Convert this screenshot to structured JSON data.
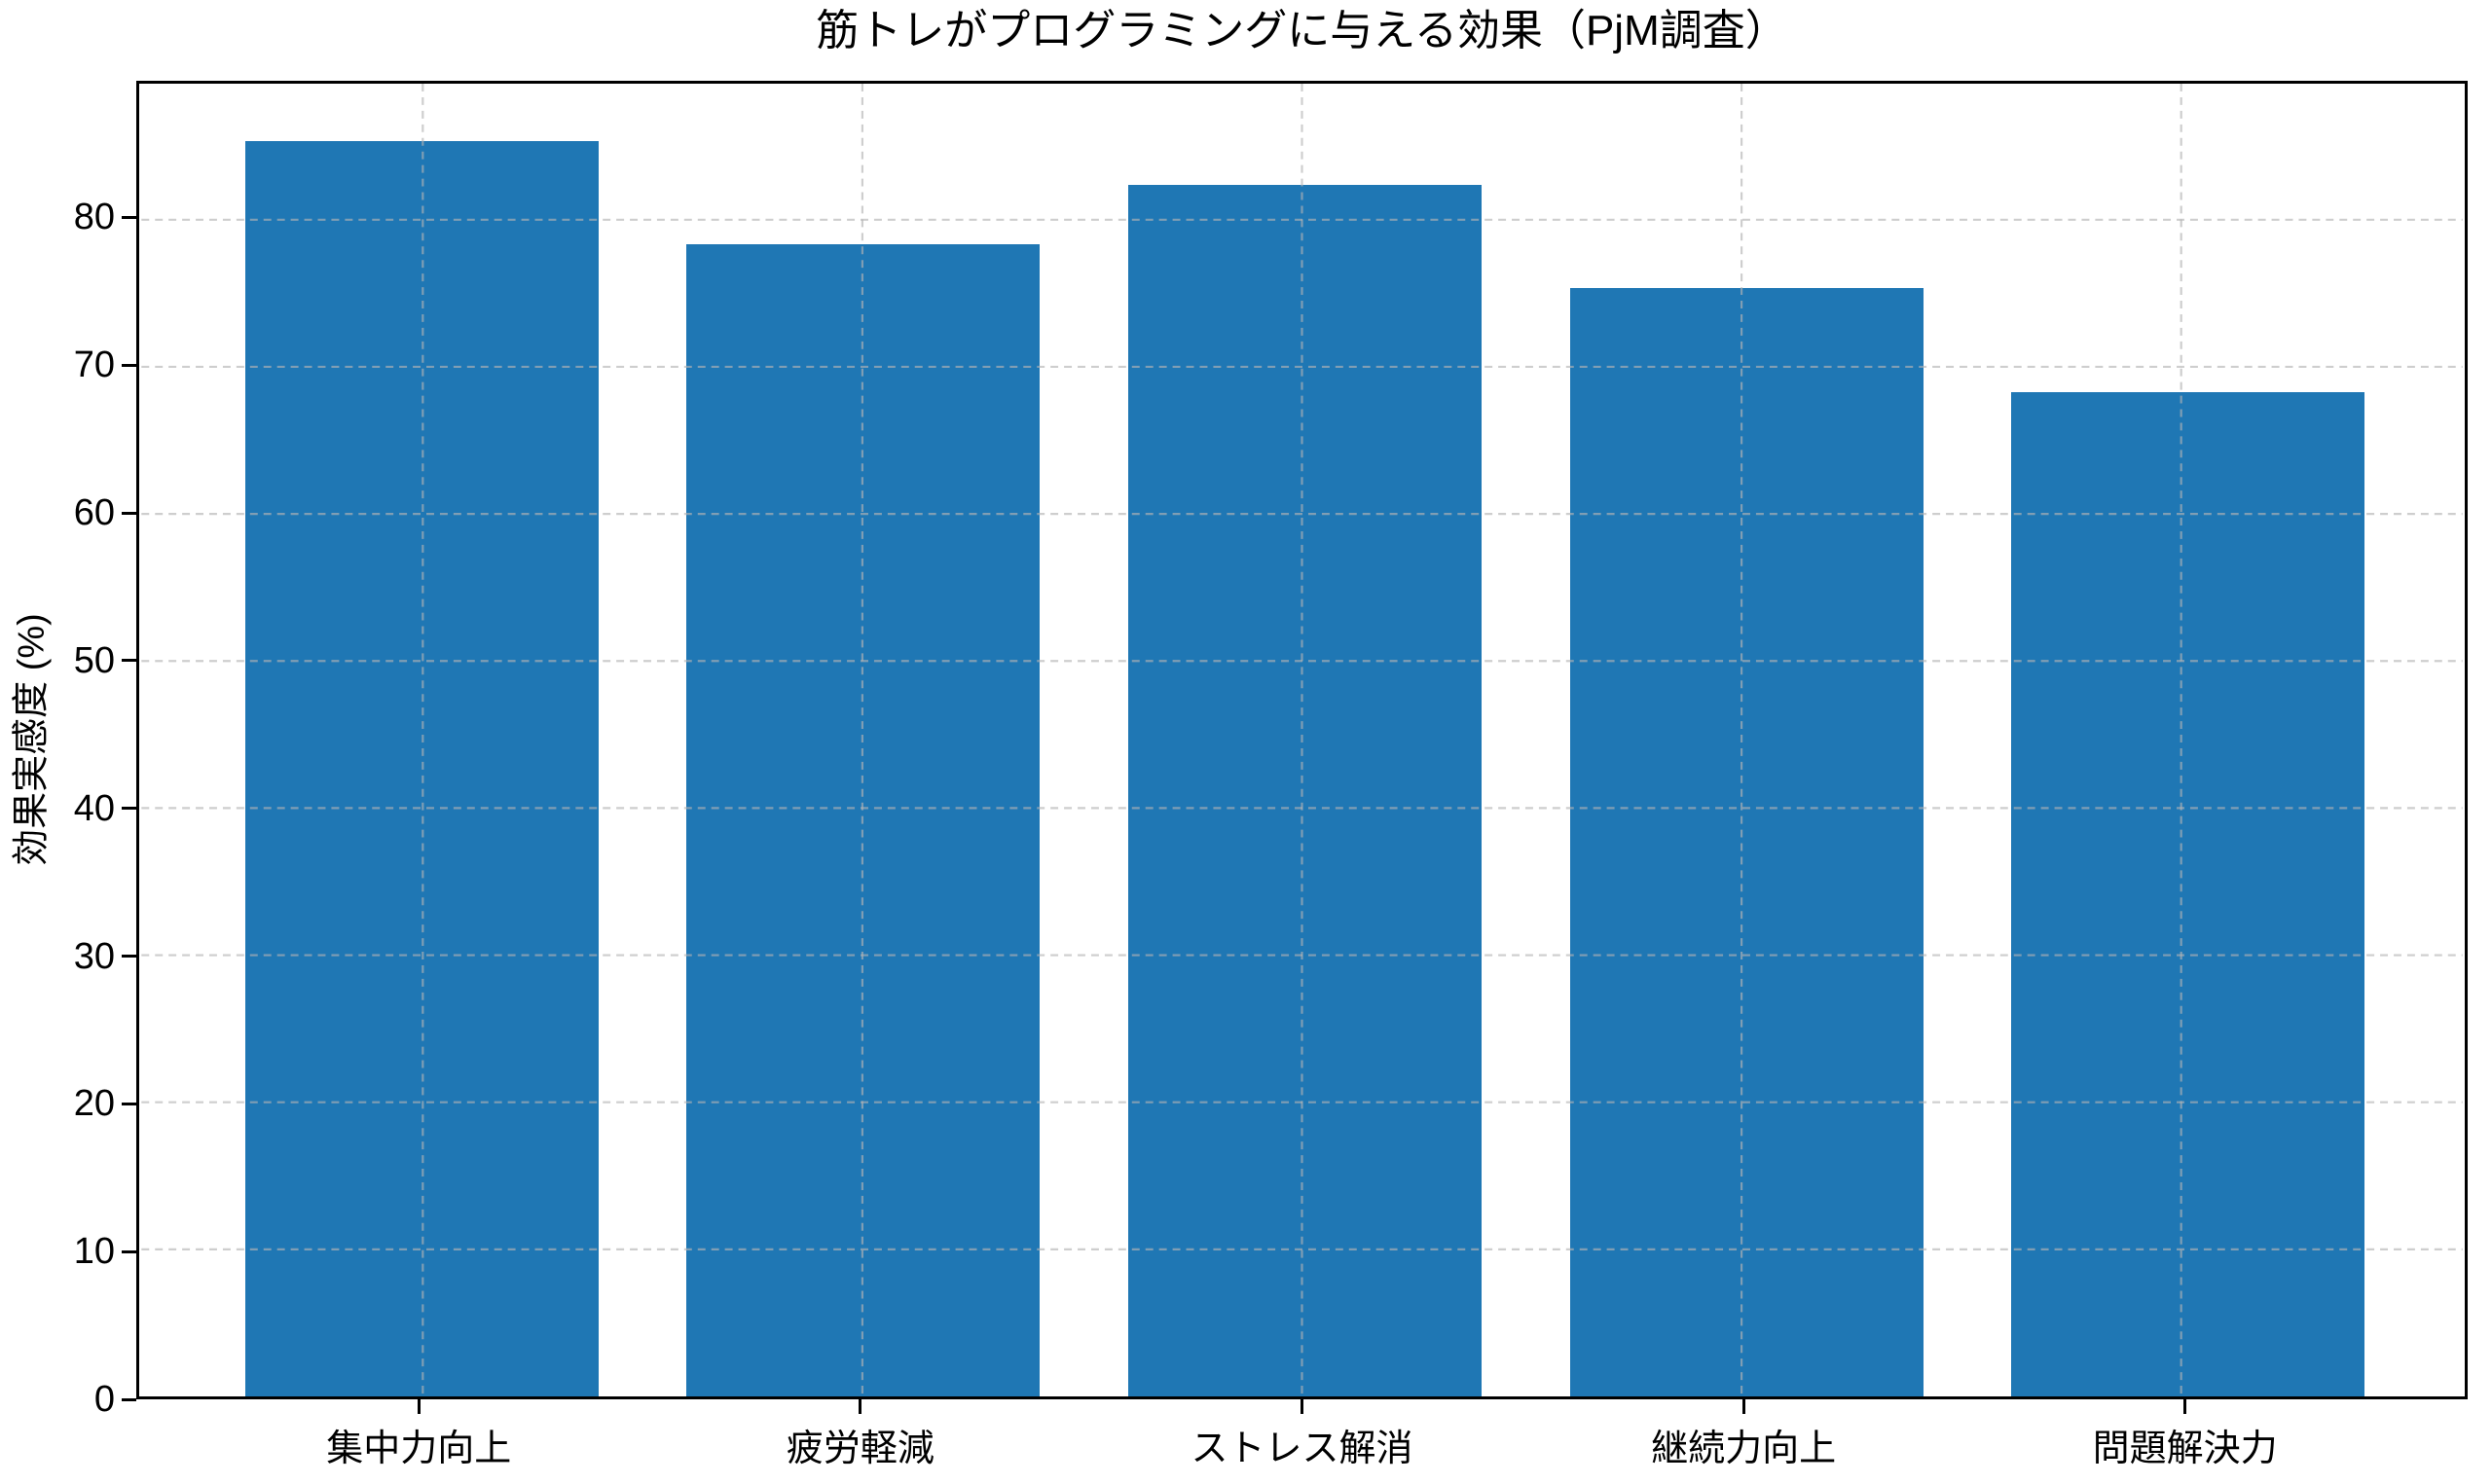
{
  "chart_data": {
    "type": "bar",
    "title": "筋トレがプログラミングに与える効果（PjM調査）",
    "xlabel": "",
    "ylabel": "効果実感度 (%)",
    "categories": [
      "集中力向上",
      "疲労軽減",
      "ストレス解消",
      "継続力向上",
      "問題解決力"
    ],
    "values": [
      85,
      78,
      82,
      75,
      68
    ],
    "yticks": [
      0,
      10,
      20,
      30,
      40,
      50,
      60,
      70,
      80
    ],
    "ylim": [
      0,
      89.25
    ],
    "xlim": [
      -0.64,
      4.64
    ],
    "bar_width_fraction": 0.8,
    "legend": "none",
    "grid": "both, dashed, drawn above bars",
    "colors": {
      "bar": "#1f77b4",
      "grid": "#b4b4b4",
      "axes": "#000000",
      "background": "#ffffff",
      "text": "#000000"
    }
  }
}
